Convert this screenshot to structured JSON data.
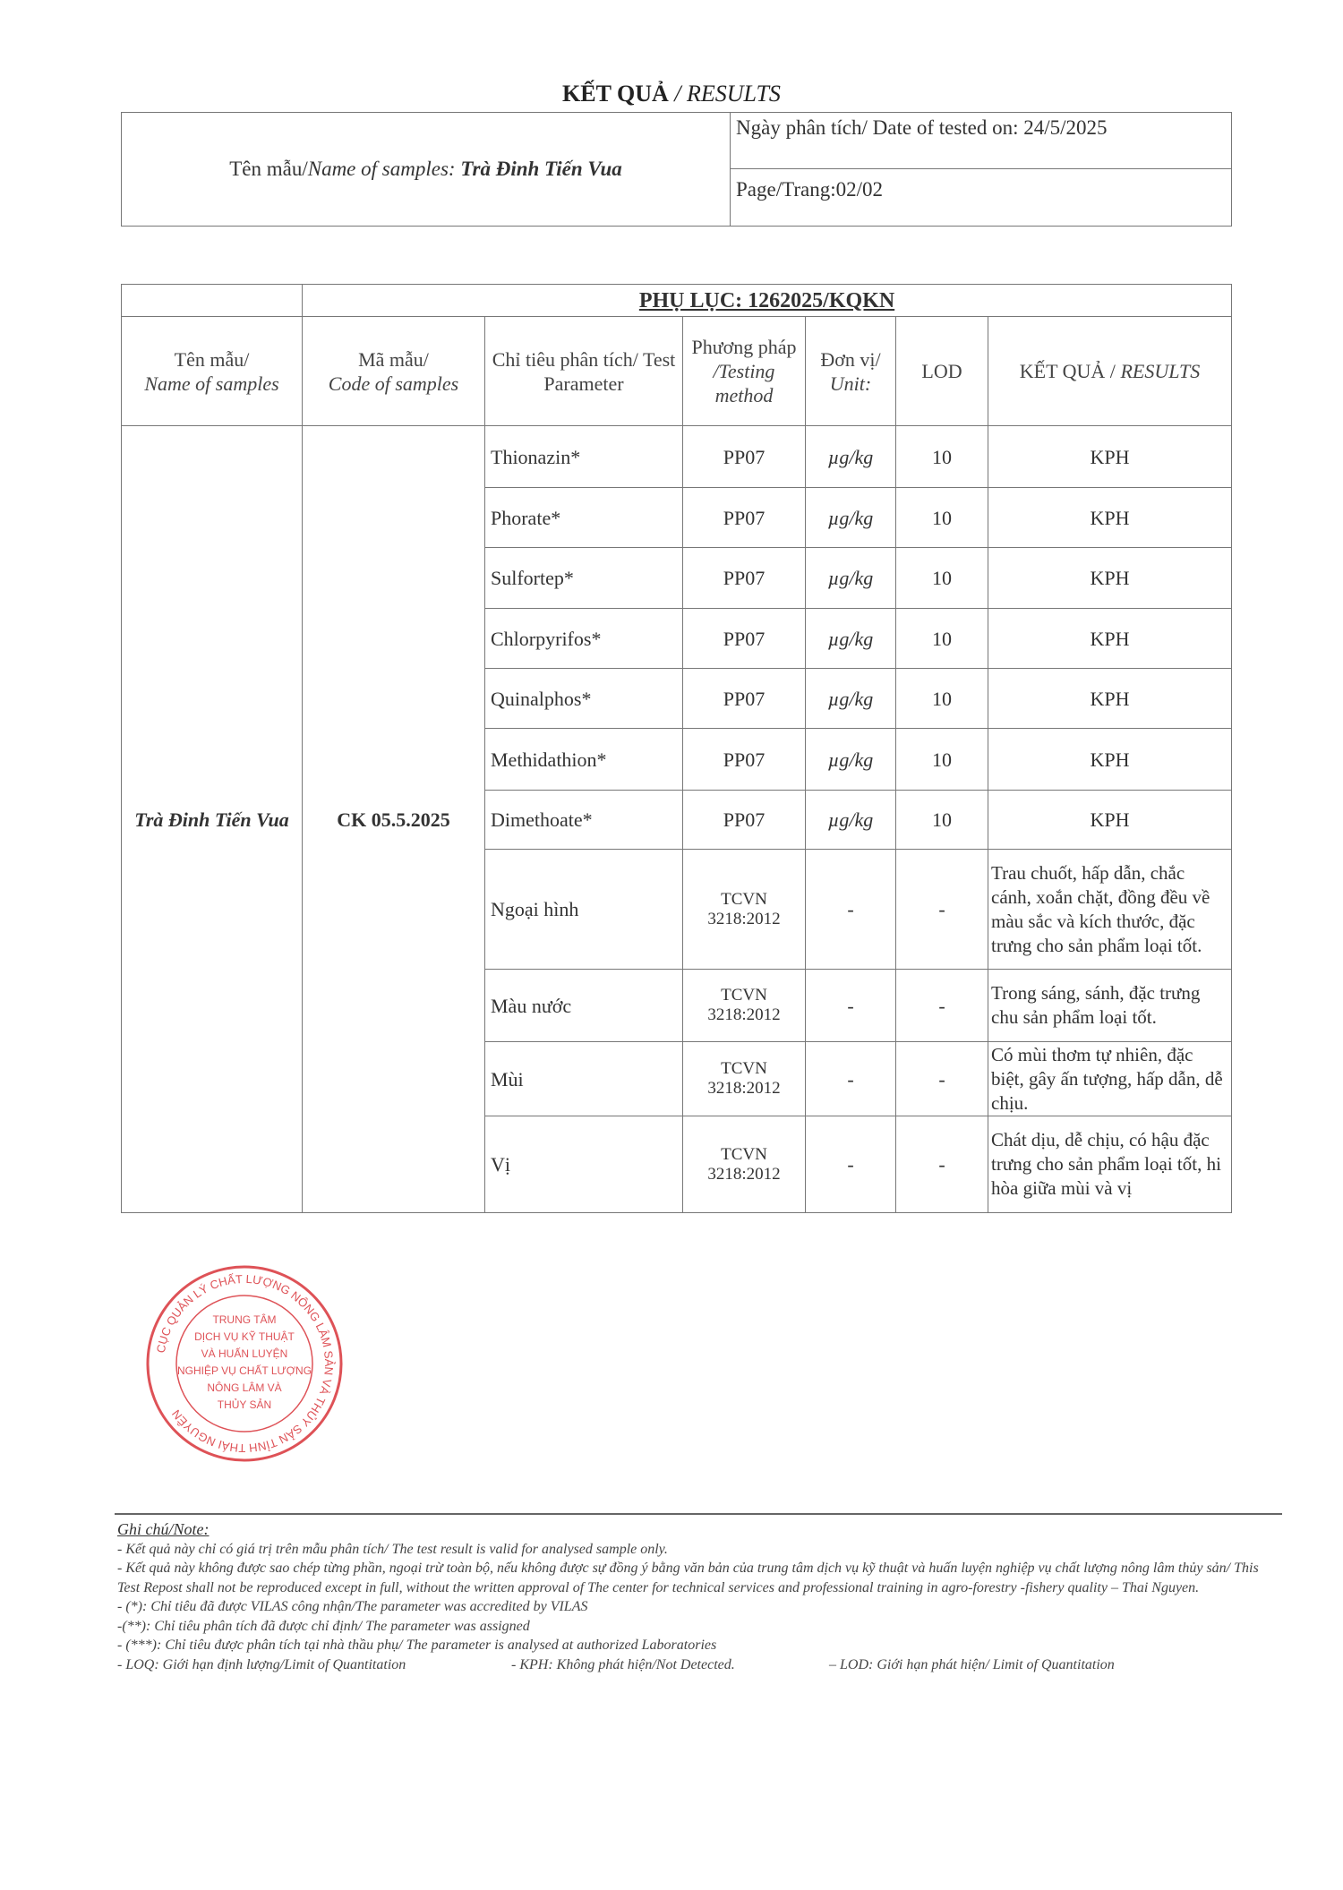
{
  "title": {
    "main": "KẾT QUẢ",
    "sub": "/ RESULTS"
  },
  "info": {
    "sample_label": "Tên mẫu/",
    "sample_label_en": "Name of samples:",
    "sample_name": "Trà Đinh Tiến Vua",
    "date": "Ngày phân tích/ Date of tested on: 24/5/2025",
    "page": "Page/Trang:02/02"
  },
  "appendix": {
    "title": "PHỤ LỤC: 1262025/KQKN",
    "headers": {
      "name_vi": "Tên mẫu/",
      "name_en": "Name of samples",
      "code_vi": "Mã mẫu/",
      "code_en": "Code of samples",
      "param": "Chỉ tiêu phân tích/ Test Parameter",
      "method_vi": "Phương pháp",
      "method_en": "/Testing method",
      "unit_vi": "Đơn vị/",
      "unit_en": "Unit:",
      "lod": "LOD",
      "result_vi": "KẾT QUẢ /",
      "result_en": "RESULTS"
    },
    "sample_name": "Trà Đinh Tiến Vua",
    "sample_code": "CK 05.5.2025",
    "rows": [
      {
        "param": "Thionazin*",
        "method": "PP07",
        "unit": "µg/kg",
        "lod": "10",
        "result": "KPH"
      },
      {
        "param": "Phorate*",
        "method": "PP07",
        "unit": "µg/kg",
        "lod": "10",
        "result": "KPH"
      },
      {
        "param": "Sulfortep*",
        "method": "PP07",
        "unit": "µg/kg",
        "lod": "10",
        "result": "KPH"
      },
      {
        "param": "Chlorpyrifos*",
        "method": "PP07",
        "unit": "µg/kg",
        "lod": "10",
        "result": "KPH"
      },
      {
        "param": "Quinalphos*",
        "method": "PP07",
        "unit": "µg/kg",
        "lod": "10",
        "result": "KPH"
      },
      {
        "param": "Methidathion*",
        "method": "PP07",
        "unit": "µg/kg",
        "lod": "10",
        "result": "KPH"
      },
      {
        "param": "Dimethoate*",
        "method": "PP07",
        "unit": "µg/kg",
        "lod": "10",
        "result": "KPH"
      },
      {
        "param": "Ngoại hình",
        "method": "TCVN 3218:2012",
        "unit": "-",
        "lod": "-",
        "result": "Trau chuốt, hấp dẫn, chắc cánh, xoắn chặt, đồng đều về màu sắc và kích thước, đặc trưng cho sản phẩm loại tốt."
      },
      {
        "param": "Màu nước",
        "method": "TCVN 3218:2012",
        "unit": "-",
        "lod": "-",
        "result": "Trong sáng, sánh, đặc trưng chu sản phẩm loại tốt."
      },
      {
        "param": "Mùi",
        "method": "TCVN 3218:2012",
        "unit": "-",
        "lod": "-",
        "result": "Có mùi thơm tự nhiên, đặc biệt, gây ấn tượng, hấp dẫn, dễ chịu."
      },
      {
        "param": "Vị",
        "method": "TCVN 3218:2012",
        "unit": "-",
        "lod": "-",
        "result": "Chát dịu, dễ chịu, có hậu đặc trưng cho sản phẩm loại tốt, hi hòa giữa mùi và vị"
      }
    ]
  },
  "notes": {
    "heading": "Ghi chú/Note:",
    "lines": [
      "- Kết quả này chỉ có giá trị trên mẫu phân tích/ The test result is valid for analysed sample only.",
      "- Kết quả này không được sao chép từng phần, ngoại trừ toàn bộ, nếu không được sự đồng ý bằng văn bản của trung tâm dịch vụ kỹ thuật và huấn luyện nghiệp vụ chất lượng nông lâm thủy sản/ This Test Repost shall not be reproduced except in full, without the written approval of The center for technical services and professional training in agro-forestry -fishery quality – Thai Nguyen.",
      "- (*): Chỉ tiêu đã được VILAS công nhận/The parameter was accredited by VILAS",
      "-(**): Chỉ tiêu phân tích đã được chỉ định/ The parameter was assigned",
      "- (***): Chỉ tiêu được phân tích tại nhà thầu phụ/ The parameter is analysed at authorized Laboratories"
    ],
    "loq": "- LOQ: Giới hạn định lượng/Limit of Quantitation",
    "kph": "- KPH:  Không phát hiện/Not Detected.",
    "lod": "– LOD: Giới hạn phát hiện/ Limit of Quantitation"
  },
  "stamp": {
    "outer_text": "CỤC QUẢN LÝ CHẤT LƯỢNG NÔNG LÂM SẢN VÀ THỦY SẢN TỈNH THÁI NGUYÊN",
    "inner_lines": [
      "TRUNG TÂM",
      "DỊCH VỤ KỸ THUẬT",
      "VÀ HUẤN LUYỆN",
      "NGHIỆP VỤ CHẤT LƯỢNG",
      "NÔNG LÂM VÀ",
      "THỦY SẢN"
    ],
    "color": "#d9343a"
  }
}
